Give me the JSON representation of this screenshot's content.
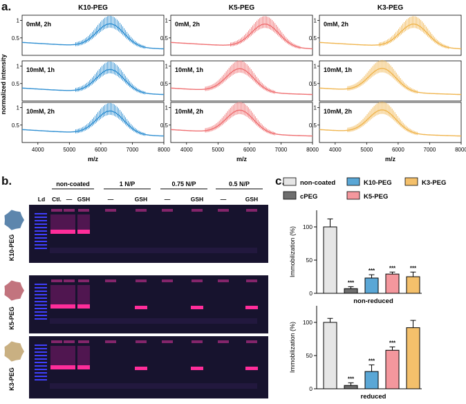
{
  "panels": {
    "a": "a.",
    "b": "b.",
    "c": "c."
  },
  "ms": {
    "ylabel": "normalized intensity",
    "xlabel": "m/z",
    "xticks": [
      "4000",
      "5000",
      "6000",
      "7000",
      "8000"
    ],
    "yticks": [
      "0.5",
      "1"
    ],
    "x_range": [
      3500,
      8000
    ],
    "columns": [
      {
        "title": "K10-PEG",
        "color": "#2f8fd2",
        "peak_center": [
          6300,
          6300,
          6300
        ],
        "peak_heights": [
          1.0,
          1.0,
          1.0
        ]
      },
      {
        "title": "K5-PEG",
        "color": "#ef6f71",
        "peak_center": [
          6500,
          5700,
          5700
        ],
        "peak_heights": [
          1.0,
          1.0,
          1.0
        ]
      },
      {
        "title": "K3-PEG",
        "color": "#f0b54e",
        "peak_center": [
          6500,
          5500,
          5500
        ],
        "peak_heights": [
          1.0,
          1.0,
          1.0
        ]
      }
    ],
    "row_labels": [
      "0mM, 2h",
      "10mM, 1h",
      "10mM, 2h"
    ]
  },
  "gel": {
    "group_headers": [
      "non-coated",
      "1 N/P",
      "0.75 N/P",
      "0.5 N/P"
    ],
    "lane_labels": [
      "Ld",
      "Ctl.",
      "—",
      "GSH",
      "—",
      "GSH",
      "—",
      "GSH",
      "—",
      "GSH"
    ],
    "row_labels": [
      "K10-PEG",
      "K5-PEG",
      "K3-PEG"
    ],
    "particle_colors": [
      "#5d86ad",
      "#c2747e",
      "#c9b082"
    ]
  },
  "chart_data": [
    {
      "type": "bar",
      "title": "non-reduced",
      "ylabel": "Immobilization (%)",
      "ylim": [
        0,
        125
      ],
      "yticks": [
        "0",
        "50",
        "100"
      ],
      "categories": [
        "non-coated",
        "cPEG",
        "K10-PEG",
        "K5-PEG",
        "K3-PEG"
      ],
      "values": [
        100,
        7,
        23,
        29,
        25
      ],
      "errors": [
        12,
        3,
        5,
        3,
        7
      ],
      "significance": [
        "",
        "***",
        "***",
        "***",
        "***"
      ]
    },
    {
      "type": "bar",
      "title": "reduced",
      "ylabel": "Immobilization (%)",
      "ylim": [
        0,
        125
      ],
      "yticks": [
        "0",
        "50",
        "100"
      ],
      "categories": [
        "non-coated",
        "cPEG",
        "K10-PEG",
        "K5-PEG",
        "K3-PEG"
      ],
      "values": [
        100,
        5,
        26,
        58,
        92
      ],
      "errors": [
        6,
        4,
        10,
        5,
        11
      ],
      "significance": [
        "",
        "***",
        "***",
        "***",
        ""
      ]
    }
  ],
  "legend": {
    "items": [
      {
        "label": "non-coated",
        "color": "#e6e6e6"
      },
      {
        "label": "K10-PEG",
        "color": "#5aa7d6"
      },
      {
        "label": "K3-PEG",
        "color": "#f4c06b"
      },
      {
        "label": "cPEG",
        "color": "#6e6e6e"
      },
      {
        "label": "K5-PEG",
        "color": "#f4979d"
      }
    ]
  }
}
